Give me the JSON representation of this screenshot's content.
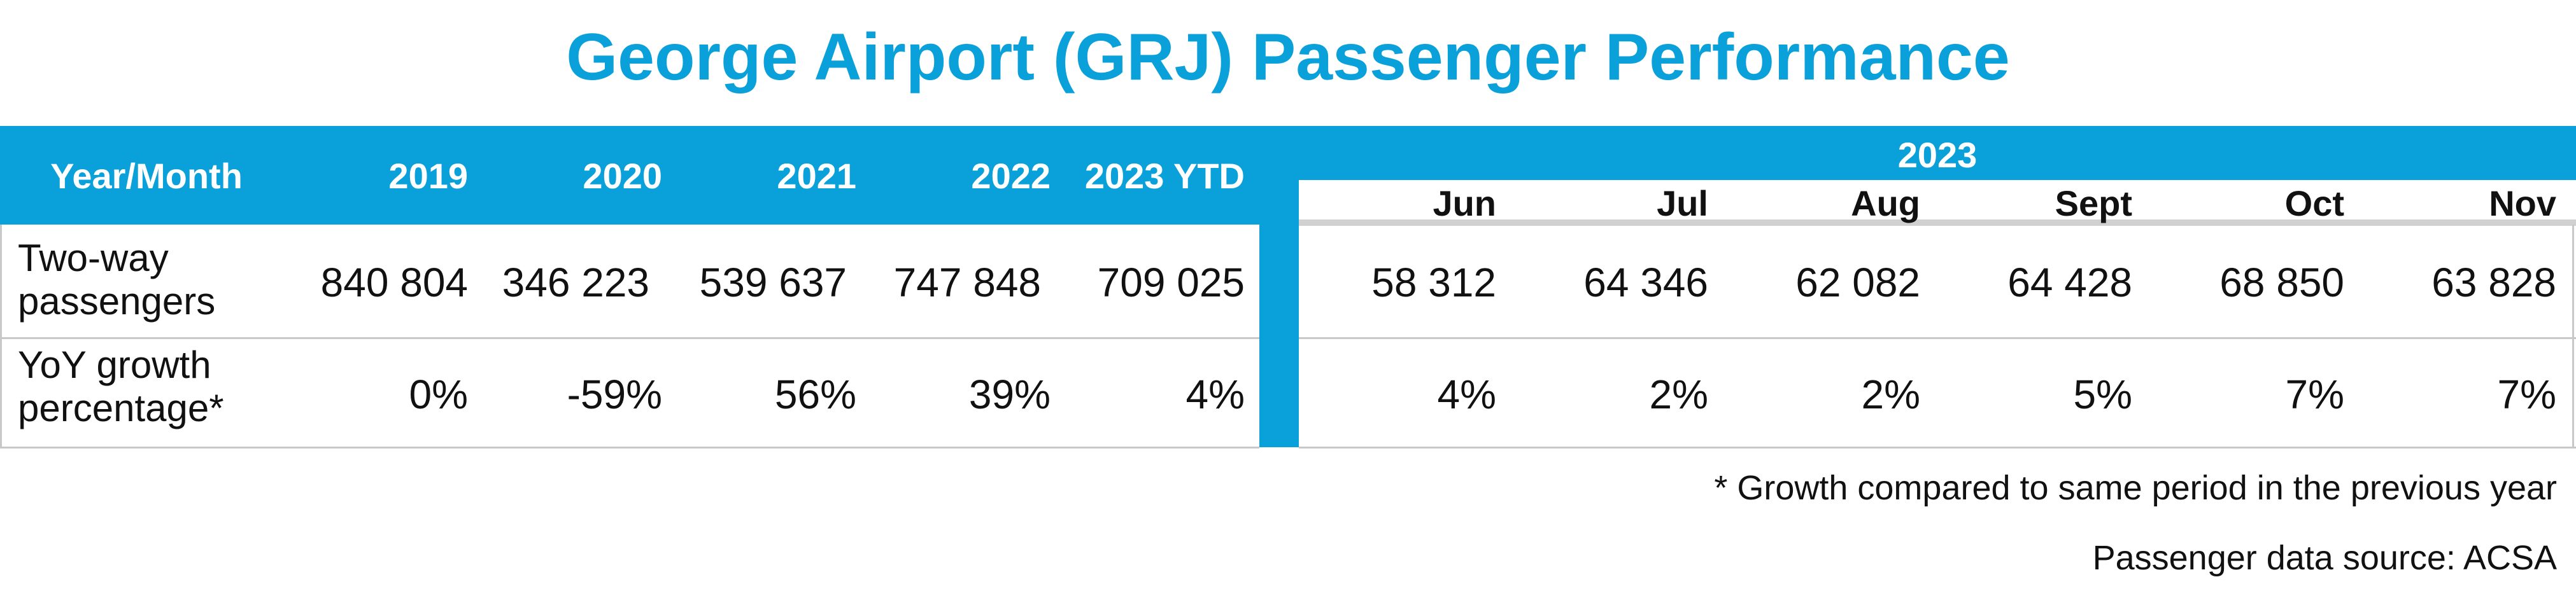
{
  "title": "George Airport (GRJ) Passenger Performance",
  "colors": {
    "accent": "#0aa0d9",
    "text": "#111111",
    "grid": "#c8c8c8"
  },
  "table": {
    "row_header_label": "Year/Month",
    "annual_columns": [
      "2019",
      "2020",
      "2021",
      "2022",
      "2023 YTD"
    ],
    "monthly_group_label": "2023",
    "monthly_columns": [
      "Jun",
      "Jul",
      "Aug",
      "Sept",
      "Oct",
      "Nov"
    ],
    "rows": [
      {
        "label": "Two-way passengers",
        "annual": [
          "840 804",
          "346 223",
          "539 637",
          "747 848",
          "709 025"
        ],
        "monthly": [
          "58 312",
          "64 346",
          "62 082",
          "64 428",
          "68 850",
          "63 828"
        ]
      },
      {
        "label": "YoY growth percentage*",
        "annual": [
          "0%",
          "-59%",
          "56%",
          "39%",
          "4%"
        ],
        "monthly": [
          "4%",
          "2%",
          "2%",
          "5%",
          "7%",
          "7%"
        ]
      }
    ]
  },
  "footnotes": [
    "* Growth compared to same period in the previous year",
    "Passenger data source: ACSA"
  ]
}
